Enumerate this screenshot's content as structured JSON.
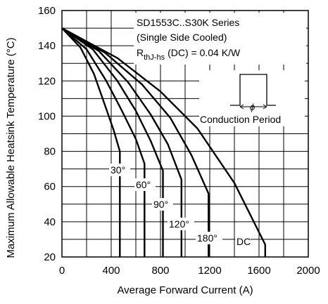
{
  "chart_data": {
    "type": "line",
    "xlabel": "Average Forward Current (A)",
    "ylabel": "Maximum Allowable Heatsink Temperature (°C)",
    "xlim": [
      0,
      2000
    ],
    "ylim": [
      20,
      160
    ],
    "x_ticks": [
      "0",
      "400",
      "800",
      "1200",
      "1600",
      "2000"
    ],
    "y_ticks": [
      "20",
      "40",
      "60",
      "80",
      "100",
      "120",
      "140",
      "160"
    ],
    "grid": true,
    "annotations": {
      "series_title": "SD1553C..S30K Series",
      "cooling": "(Single Side Cooled)",
      "rth_main": "R",
      "rth_sub": "thJ-hs",
      "rth_value": "(DC) = 0.04 K/W",
      "conduction_label": "Conduction Period"
    },
    "series": [
      {
        "name": "30°",
        "label": "30°",
        "points": [
          [
            0,
            150
          ],
          [
            150,
            139
          ],
          [
            260,
            124
          ],
          [
            350,
            106
          ],
          [
            420,
            92
          ],
          [
            470,
            80
          ],
          [
            470,
            20
          ]
        ]
      },
      {
        "name": "60°",
        "label": "60°",
        "points": [
          [
            0,
            150
          ],
          [
            200,
            138
          ],
          [
            360,
            120
          ],
          [
            480,
            104
          ],
          [
            600,
            87
          ],
          [
            670,
            73
          ],
          [
            670,
            20
          ]
        ]
      },
      {
        "name": "90°",
        "label": "90°",
        "points": [
          [
            0,
            150
          ],
          [
            250,
            138
          ],
          [
            450,
            120
          ],
          [
            600,
            103
          ],
          [
            720,
            86
          ],
          [
            820,
            69
          ],
          [
            820,
            20
          ]
        ]
      },
      {
        "name": "120°",
        "label": "120°",
        "points": [
          [
            0,
            150
          ],
          [
            300,
            137
          ],
          [
            540,
            119
          ],
          [
            720,
            101
          ],
          [
            860,
            84
          ],
          [
            970,
            64
          ],
          [
            970,
            20
          ]
        ]
      },
      {
        "name": "180°",
        "label": "180°",
        "points": [
          [
            0,
            150
          ],
          [
            350,
            136
          ],
          [
            650,
            118
          ],
          [
            880,
            99
          ],
          [
            1050,
            78
          ],
          [
            1190,
            56
          ],
          [
            1190,
            20
          ]
        ]
      },
      {
        "name": "DC",
        "label": "DC",
        "points": [
          [
            0,
            150
          ],
          [
            450,
            133
          ],
          [
            800,
            114
          ],
          [
            1100,
            93
          ],
          [
            1400,
            62
          ],
          [
            1650,
            27
          ],
          [
            1650,
            20
          ]
        ]
      }
    ]
  }
}
